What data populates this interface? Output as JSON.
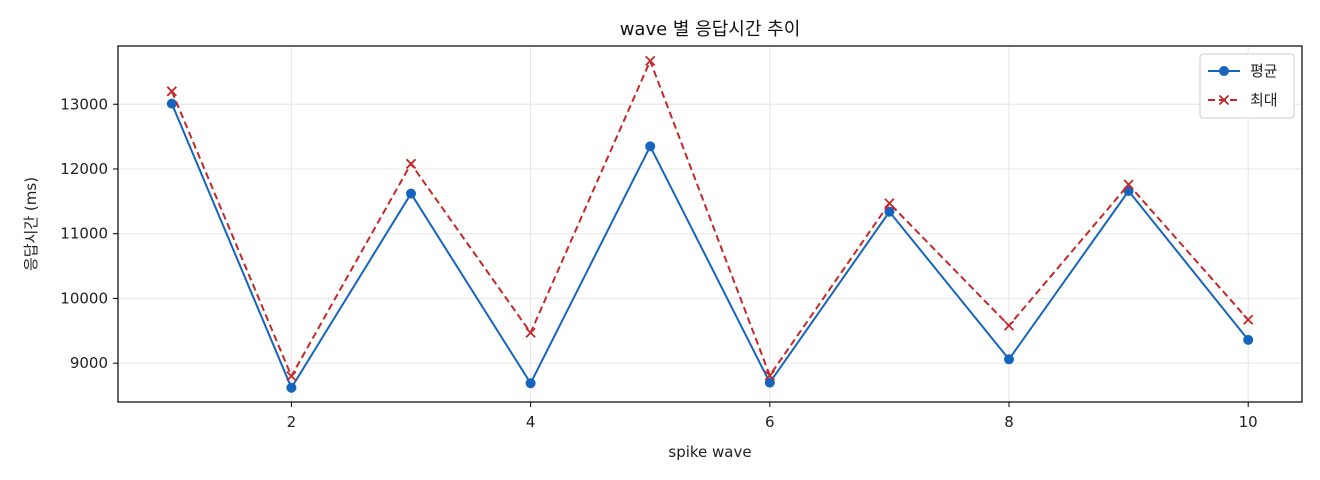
{
  "chart_data": {
    "type": "line",
    "title": "wave 별 응답시간 추이",
    "xlabel": "spike wave",
    "ylabel": "응답시간 (ms)",
    "x": [
      1,
      2,
      3,
      4,
      5,
      6,
      7,
      8,
      9,
      10
    ],
    "xlim": [
      0.55,
      10.45
    ],
    "ylim": [
      8400,
      13900
    ],
    "xticks": [
      2,
      4,
      6,
      8,
      10
    ],
    "yticks": [
      9000,
      10000,
      11000,
      12000,
      13000
    ],
    "grid": true,
    "legend_position": "top-right",
    "series": [
      {
        "name": "평균",
        "color": "#1565c0",
        "line_style": "solid",
        "marker": "circle",
        "values": [
          13010,
          8620,
          11620,
          8690,
          12350,
          8700,
          11340,
          9060,
          11660,
          9360
        ]
      },
      {
        "name": "최대",
        "color": "#c62828",
        "line_style": "dashed",
        "marker": "x",
        "values": [
          13200,
          8800,
          12080,
          9470,
          13670,
          8810,
          11470,
          9580,
          11760,
          9670
        ]
      }
    ]
  }
}
